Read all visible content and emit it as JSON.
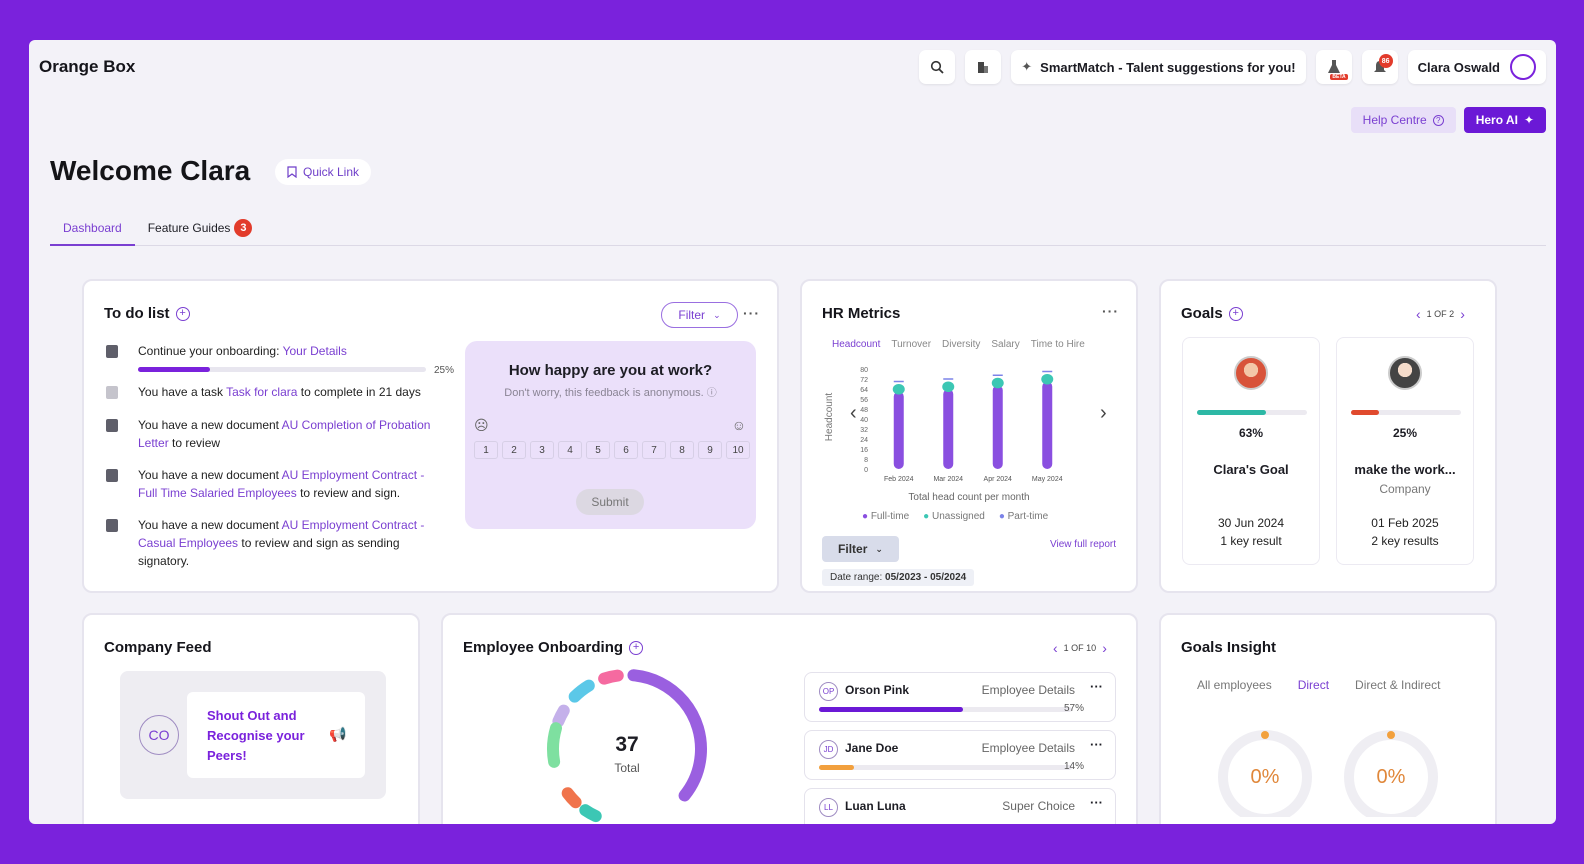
{
  "app": {
    "brand": "Orange Box"
  },
  "topbar": {
    "smartmatch_label": "SmartMatch - Talent suggestions for you!",
    "beta_label": "BETA",
    "notification_count": "86",
    "user_name": "Clara Oswald"
  },
  "help": {
    "help_label": "Help Centre",
    "hero_label": "Hero AI"
  },
  "welcome": {
    "title": "Welcome Clara",
    "quick_link": "Quick Link"
  },
  "tabs": [
    {
      "label": "Dashboard"
    },
    {
      "label": "Feature Guides",
      "count": "3"
    }
  ],
  "todo": {
    "title": "To do list",
    "filter_label": "Filter",
    "items": [
      {
        "prefix": "Continue your onboarding: ",
        "link": "Your Details",
        "suffix": "",
        "progress_pct": "25%",
        "progress": 0.25
      },
      {
        "prefix": "You have a task ",
        "link": "Task for clara",
        "suffix": " to complete in 21 days"
      },
      {
        "prefix": "You have a new document ",
        "link": "AU Completion of Probation Letter",
        "suffix": " to review"
      },
      {
        "prefix": "You have a new document ",
        "link": "AU Employment Contract - Full Time Salaried Employees",
        "suffix": " to review and sign."
      },
      {
        "prefix": "You have a new document ",
        "link": "AU Employment Contract - Casual Employees",
        "suffix": " to review and sign as sending signatory."
      }
    ]
  },
  "survey": {
    "question": "How happy are you at work?",
    "subtitle": "Don't worry, this feedback is anonymous.",
    "scale": [
      "1",
      "2",
      "3",
      "4",
      "5",
      "6",
      "7",
      "8",
      "9",
      "10"
    ],
    "submit_label": "Submit"
  },
  "hr_metrics": {
    "title": "HR Metrics",
    "tabs": [
      "Headcount",
      "Turnover",
      "Diversity",
      "Salary",
      "Time to Hire"
    ],
    "active_tab": "Headcount",
    "filter_label": "Filter",
    "view_report": "View full report",
    "date_range_label": "Date range: ",
    "date_range_value": "05/2023 - 05/2024",
    "chart_data": {
      "type": "bar",
      "title": "",
      "xlabel": "Total head count per month",
      "ylabel": "Headcount",
      "categories": [
        "Feb 2024",
        "Mar 2024",
        "Apr 2024",
        "May 2024"
      ],
      "yticks": [
        "80",
        "72",
        "64",
        "56",
        "48",
        "40",
        "32",
        "24",
        "16",
        "8",
        "0"
      ],
      "ylim": [
        0,
        80
      ],
      "series": [
        {
          "name": "Full-time",
          "color": "#8a4fe0",
          "values": [
            62,
            64,
            67,
            70
          ]
        },
        {
          "name": "Unassigned",
          "color": "#3cc7b4",
          "values": [
            6,
            6,
            6,
            6
          ]
        },
        {
          "name": "Part-time",
          "color": "#7c83e8",
          "values": [
            1,
            1,
            1,
            1
          ]
        }
      ],
      "legend": [
        "Full-time",
        "Unassigned",
        "Part-time"
      ],
      "grid": false
    }
  },
  "goals": {
    "title": "Goals",
    "pager": "1 OF 2",
    "cards": [
      {
        "percent": "63%",
        "progress": 0.63,
        "color": "#2db8a5",
        "name": "Clara's Goal",
        "sub": "",
        "date": "30 Jun 2024",
        "key_results": "1 key result"
      },
      {
        "percent": "25%",
        "progress": 0.25,
        "color": "#e04a2e",
        "name": "make the work...",
        "sub": "Company",
        "date": "01 Feb 2025",
        "key_results": "2 key results"
      }
    ]
  },
  "feed": {
    "title": "Company Feed",
    "initials": "CO",
    "message": "Shout Out and Recognise your Peers!"
  },
  "onboarding": {
    "title": "Employee Onboarding",
    "pager": "1 OF 10",
    "total": "37",
    "total_label": "Total",
    "rows": [
      {
        "initials": "OP",
        "name": "Orson Pink",
        "stage": "Employee Details",
        "pct": "57%",
        "progress": 0.57,
        "color": "#6b19d6"
      },
      {
        "initials": "JD",
        "name": "Jane Doe",
        "stage": "Employee Details",
        "pct": "14%",
        "progress": 0.14,
        "color": "#f2a03d"
      },
      {
        "initials": "LL",
        "name": "Luan Luna",
        "stage": "Super Choice",
        "pct": "",
        "progress": 0,
        "color": "#6b19d6"
      }
    ]
  },
  "insight": {
    "title": "Goals Insight",
    "tabs": [
      "All employees",
      "Direct",
      "Direct & Indirect"
    ],
    "active_tab": "Direct",
    "values": [
      "0%",
      "0%"
    ]
  }
}
